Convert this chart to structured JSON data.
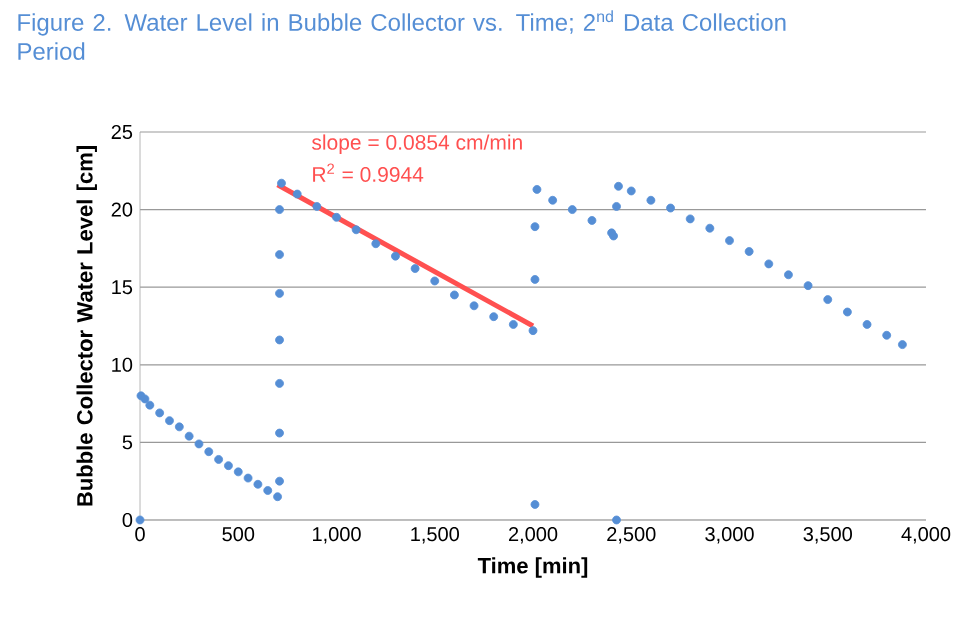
{
  "chart_data": {
    "type": "scatter",
    "title": "Figure 2. Water Level in Bubble Collector vs. Time; 2$^{nd}$ Data Collection Period",
    "xlabel": "Time [min]",
    "ylabel": "Bubble Collector Water Level [cm]",
    "xlim": [
      0,
      4000
    ],
    "ylim": [
      0,
      25
    ],
    "xticks": [
      0,
      500,
      {
        "value": 1000,
        "label": "1,000"
      },
      {
        "value": 1500,
        "label": "1,500"
      },
      {
        "value": 2000,
        "label": "2,000"
      },
      {
        "value": 2500,
        "label": "2,500"
      },
      {
        "value": 3000,
        "label": "3,000"
      },
      {
        "value": 3500,
        "label": "3,500"
      },
      {
        "value": 4000,
        "label": "4,000"
      }
    ],
    "yticks": [
      0,
      5,
      10,
      15,
      20,
      25
    ],
    "grid": "y",
    "annotations": [
      "slope = 0.0854 cm/min",
      "R$^{2}$ = 0.9944"
    ],
    "series": [
      {
        "color": "#558ed5",
        "marker": "circle",
        "x": [
          0,
          5,
          25,
          50,
          100,
          150,
          200,
          250,
          300,
          350,
          400,
          450,
          500,
          550,
          600,
          650,
          700,
          710,
          710,
          710,
          710,
          710,
          710,
          710,
          720,
          800,
          900,
          1000,
          1100,
          1200,
          1300,
          1400,
          1500,
          1600,
          1700,
          1800,
          1900,
          2000,
          2010,
          2010,
          2010,
          2020,
          2100,
          2200,
          2300,
          2400,
          2410,
          2425,
          2425,
          2435,
          2500,
          2600,
          2700,
          2800,
          2900,
          3000,
          3100,
          3200,
          3300,
          3400,
          3500,
          3600,
          3700,
          3800,
          3880
        ],
        "values": [
          0,
          8.0,
          7.8,
          7.4,
          6.9,
          6.4,
          6.0,
          5.4,
          4.9,
          4.4,
          3.9,
          3.5,
          3.1,
          2.7,
          2.3,
          1.9,
          1.5,
          2.5,
          5.6,
          8.8,
          11.6,
          14.6,
          17.1,
          20.0,
          21.7,
          21.0,
          20.2,
          19.5,
          18.7,
          17.8,
          17.0,
          16.2,
          15.4,
          14.5,
          13.8,
          13.1,
          12.6,
          12.2,
          1.0,
          15.5,
          18.9,
          21.3,
          20.6,
          20.0,
          19.3,
          18.5,
          18.3,
          0,
          20.2,
          21.5,
          21.2,
          20.6,
          20.1,
          19.4,
          18.8,
          18.0,
          17.3,
          16.5,
          15.8,
          15.1,
          14.2,
          13.4,
          12.6,
          11.9,
          11.3
        ]
      },
      {
        "type": "line",
        "color": "#ff5050",
        "marker": "none",
        "line_style": "solid",
        "x": [
          700,
          2000
        ],
        "values": [
          21.6,
          12.5
        ]
      }
    ]
  }
}
